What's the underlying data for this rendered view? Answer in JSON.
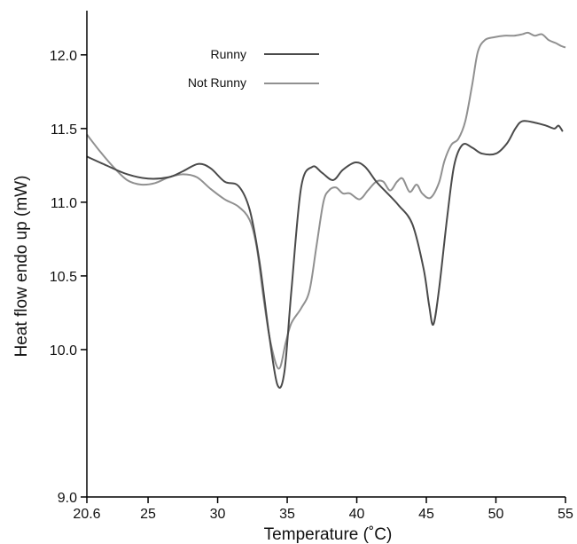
{
  "chart_data": {
    "type": "line",
    "title": "",
    "xlabel": "Temperature (˚C)",
    "ylabel": "Heat flow endo up (mW)",
    "xlim": [
      20.6,
      55
    ],
    "ylim": [
      9.0,
      12.3
    ],
    "xticks": [
      20.6,
      25,
      30,
      35,
      40,
      45,
      50,
      55
    ],
    "xtick_labels": [
      "20.6",
      "25",
      "30",
      "35",
      "40",
      "45",
      "50",
      "55"
    ],
    "yticks": [
      9.0,
      10.0,
      10.5,
      11.0,
      11.5,
      12.0
    ],
    "ytick_labels": [
      "9.0",
      "10.0",
      "10.5",
      "11.0",
      "11.5",
      "12.0"
    ],
    "grid": false,
    "legend_position": "top-center",
    "series": [
      {
        "name": "Runny",
        "color": "#4a4a4a",
        "points": [
          [
            20.6,
            11.31
          ],
          [
            22.0,
            11.25
          ],
          [
            23.5,
            11.19
          ],
          [
            25.0,
            11.16
          ],
          [
            26.5,
            11.17
          ],
          [
            27.5,
            11.21
          ],
          [
            28.6,
            11.26
          ],
          [
            29.5,
            11.23
          ],
          [
            30.5,
            11.14
          ],
          [
            31.5,
            11.11
          ],
          [
            32.3,
            10.95
          ],
          [
            33.0,
            10.6
          ],
          [
            33.7,
            10.1
          ],
          [
            34.3,
            9.76
          ],
          [
            34.8,
            9.85
          ],
          [
            35.3,
            10.4
          ],
          [
            36.0,
            11.1
          ],
          [
            36.8,
            11.24
          ],
          [
            37.5,
            11.2
          ],
          [
            38.3,
            11.15
          ],
          [
            39.0,
            11.22
          ],
          [
            39.9,
            11.27
          ],
          [
            40.6,
            11.24
          ],
          [
            41.4,
            11.14
          ],
          [
            42.0,
            11.08
          ],
          [
            43.0,
            10.98
          ],
          [
            44.0,
            10.85
          ],
          [
            44.8,
            10.55
          ],
          [
            45.2,
            10.3
          ],
          [
            45.5,
            10.17
          ],
          [
            45.9,
            10.4
          ],
          [
            46.5,
            10.9
          ],
          [
            47.0,
            11.25
          ],
          [
            47.6,
            11.39
          ],
          [
            48.3,
            11.37
          ],
          [
            49.0,
            11.33
          ],
          [
            50.0,
            11.33
          ],
          [
            50.8,
            11.4
          ],
          [
            51.4,
            11.5
          ],
          [
            51.9,
            11.55
          ],
          [
            52.8,
            11.54
          ],
          [
            53.6,
            11.52
          ],
          [
            54.2,
            11.5
          ],
          [
            54.5,
            11.52
          ],
          [
            54.8,
            11.48
          ]
        ]
      },
      {
        "name": "Not Runny",
        "color": "#909090",
        "points": [
          [
            20.6,
            11.46
          ],
          [
            21.5,
            11.35
          ],
          [
            22.5,
            11.24
          ],
          [
            23.5,
            11.15
          ],
          [
            24.5,
            11.12
          ],
          [
            25.5,
            11.13
          ],
          [
            26.5,
            11.17
          ],
          [
            27.5,
            11.19
          ],
          [
            28.5,
            11.17
          ],
          [
            29.5,
            11.09
          ],
          [
            30.5,
            11.02
          ],
          [
            31.5,
            10.97
          ],
          [
            32.3,
            10.88
          ],
          [
            32.8,
            10.7
          ],
          [
            33.3,
            10.35
          ],
          [
            33.8,
            10.05
          ],
          [
            34.4,
            9.87
          ],
          [
            34.9,
            10.05
          ],
          [
            35.3,
            10.18
          ],
          [
            36.0,
            10.28
          ],
          [
            36.6,
            10.4
          ],
          [
            37.1,
            10.7
          ],
          [
            37.6,
            11.0
          ],
          [
            38.0,
            11.08
          ],
          [
            38.5,
            11.1
          ],
          [
            39.0,
            11.06
          ],
          [
            39.5,
            11.06
          ],
          [
            40.2,
            11.02
          ],
          [
            40.8,
            11.08
          ],
          [
            41.4,
            11.14
          ],
          [
            41.9,
            11.14
          ],
          [
            42.4,
            11.08
          ],
          [
            42.9,
            11.14
          ],
          [
            43.3,
            11.16
          ],
          [
            43.8,
            11.07
          ],
          [
            44.3,
            11.12
          ],
          [
            44.7,
            11.06
          ],
          [
            45.3,
            11.03
          ],
          [
            45.9,
            11.13
          ],
          [
            46.3,
            11.28
          ],
          [
            46.8,
            11.39
          ],
          [
            47.3,
            11.43
          ],
          [
            47.8,
            11.55
          ],
          [
            48.3,
            11.8
          ],
          [
            48.7,
            12.02
          ],
          [
            49.2,
            12.1
          ],
          [
            49.9,
            12.12
          ],
          [
            50.6,
            12.13
          ],
          [
            51.3,
            12.13
          ],
          [
            51.9,
            12.14
          ],
          [
            52.3,
            12.15
          ],
          [
            52.8,
            12.13
          ],
          [
            53.3,
            12.14
          ],
          [
            53.8,
            12.1
          ],
          [
            54.3,
            12.08
          ],
          [
            54.7,
            12.06
          ],
          [
            55.0,
            12.05
          ]
        ]
      }
    ]
  }
}
